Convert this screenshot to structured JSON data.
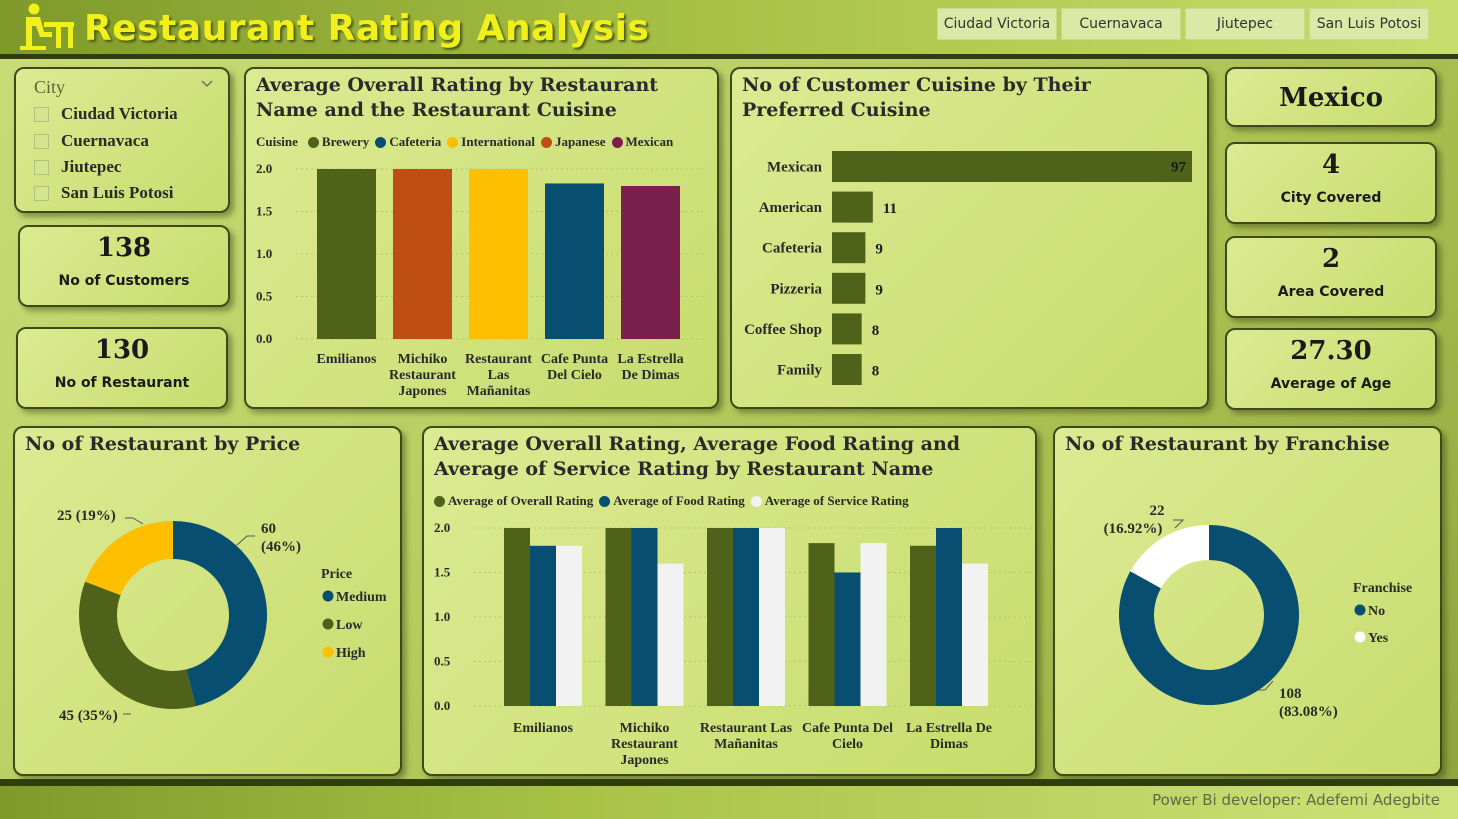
{
  "header": {
    "title": "Restaurant Rating Analysis",
    "logo_icon": "desk-person-icon",
    "city_tabs": [
      "Ciudad Victoria",
      "Cuernavaca",
      "Jiutepec",
      "San Luis Potosi"
    ]
  },
  "slicer": {
    "label": "City",
    "items": [
      "Ciudad Victoria",
      "Cuernavaca",
      "Jiutepec",
      "San Luis Potosi"
    ]
  },
  "kpis": {
    "customers": {
      "value": "138",
      "label": "No of Customers"
    },
    "restaurants": {
      "value": "130",
      "label": "No of Restaurant"
    },
    "country": {
      "value": "Mexico"
    },
    "cities": {
      "value": "4",
      "label": "City Covered"
    },
    "areas": {
      "value": "2",
      "label": "Area Covered"
    },
    "age": {
      "value": "27.30",
      "label": "Average of Age"
    }
  },
  "colors": {
    "olive": "#4f6219",
    "blue": "#074e71",
    "orange": "#bf4e14",
    "yellow": "#fdbf00",
    "purple": "#7b1f4d",
    "white": "#f2f2f2"
  },
  "footer": {
    "credit": "Power Bi developer: Adefemi Adegbite"
  },
  "chart_data": [
    {
      "id": "rating_by_cuisine",
      "type": "bar",
      "title": "Average Overall Rating by Restaurant Name and the Restaurant Cuisine",
      "legend_title": "Cuisine",
      "legend_position": "top-left",
      "categories": [
        "Emilianos",
        "Michiko Restaurant Japones",
        "Restaurant Las Mañanitas",
        "Cafe Punta Del Cielo",
        "La Estrella De Dimas"
      ],
      "category_lines": [
        [
          "Emilianos"
        ],
        [
          "Michiko",
          "Restaurant",
          "Japones"
        ],
        [
          "Restaurant",
          "Las",
          "Mañanitas"
        ],
        [
          "Cafe Punta",
          "Del Cielo"
        ],
        [
          "La Estrella",
          "De Dimas"
        ]
      ],
      "series": [
        {
          "name": "Brewery",
          "color": "#4f6219"
        },
        {
          "name": "Cafeteria",
          "color": "#074e71"
        },
        {
          "name": "International",
          "color": "#fdbf00"
        },
        {
          "name": "Japanese",
          "color": "#bf4e14"
        },
        {
          "name": "Mexican",
          "color": "#7b1f4d"
        }
      ],
      "values": [
        2.0,
        2.0,
        2.0,
        1.83,
        1.8
      ],
      "bar_colors": [
        "#4f6219",
        "#bf4e14",
        "#fdbf00",
        "#074e71",
        "#7b1f4d"
      ],
      "yticks": [
        "0.0",
        "0.5",
        "1.0",
        "1.5",
        "2.0"
      ],
      "ylim": [
        0,
        2
      ],
      "grid": true
    },
    {
      "id": "customers_by_cuisine",
      "type": "bar",
      "orientation": "horizontal",
      "title": "No of Customer Cuisine by Their Preferred Cuisine",
      "categories": [
        "Mexican",
        "American",
        "Cafeteria",
        "Pizzeria",
        "Coffee Shop",
        "Family"
      ],
      "values": [
        97,
        11,
        9,
        9,
        8,
        8
      ],
      "color": "#4f6219",
      "xlim": [
        0,
        97
      ]
    },
    {
      "id": "restaurants_by_price",
      "type": "pie",
      "donut": true,
      "title": "No of Restaurant by Price",
      "legend_title": "Price",
      "legend_position": "right",
      "labels": [
        "Medium",
        "Low",
        "High"
      ],
      "values": [
        60,
        45,
        25
      ],
      "percent_labels": [
        "46%",
        "35%",
        "19%"
      ],
      "value_labels": [
        "60",
        "45 (35%)",
        "25 (19%)"
      ],
      "medium_pct": "(46%)",
      "colors": [
        "#074e71",
        "#4f6219",
        "#fdbf00"
      ]
    },
    {
      "id": "ratings_by_restaurant",
      "type": "bar",
      "title": "Average Overall Rating, Average Food Rating and Average of Service Rating by Restaurant Name",
      "legend_position": "top-left",
      "categories": [
        "Emilianos",
        "Michiko Restaurant Japones",
        "Restaurant Las Mañanitas",
        "Cafe Punta Del Cielo",
        "La Estrella De Dimas"
      ],
      "category_lines": [
        [
          "Emilianos"
        ],
        [
          "Michiko",
          "Restaurant",
          "Japones"
        ],
        [
          "Restaurant Las",
          "Mañanitas"
        ],
        [
          "Cafe Punta Del",
          "Cielo"
        ],
        [
          "La Estrella De",
          "Dimas"
        ]
      ],
      "series": [
        {
          "name": "Average of Overall Rating",
          "values": [
            2.0,
            2.0,
            2.0,
            1.83,
            1.8
          ],
          "color": "#4f6219"
        },
        {
          "name": "Average of Food Rating",
          "values": [
            1.8,
            2.0,
            2.0,
            1.5,
            2.0
          ],
          "color": "#074e71"
        },
        {
          "name": "Average of Service Rating",
          "values": [
            1.8,
            1.6,
            2.0,
            1.83,
            1.6
          ],
          "color": "#f2f2f2"
        }
      ],
      "yticks": [
        "0.0",
        "0.5",
        "1.0",
        "1.5",
        "2.0"
      ],
      "ylim": [
        0,
        2
      ],
      "grid": true
    },
    {
      "id": "restaurants_by_franchise",
      "type": "pie",
      "donut": true,
      "title": "No of Restaurant by Franchise",
      "legend_title": "Franchise",
      "legend_position": "right",
      "labels": [
        "No",
        "Yes"
      ],
      "values": [
        108,
        22
      ],
      "value_labels": [
        "108",
        "22"
      ],
      "percent_labels": [
        "(83.08%)",
        "(16.92%)"
      ],
      "colors": [
        "#074e71",
        "#ffffff"
      ]
    }
  ]
}
